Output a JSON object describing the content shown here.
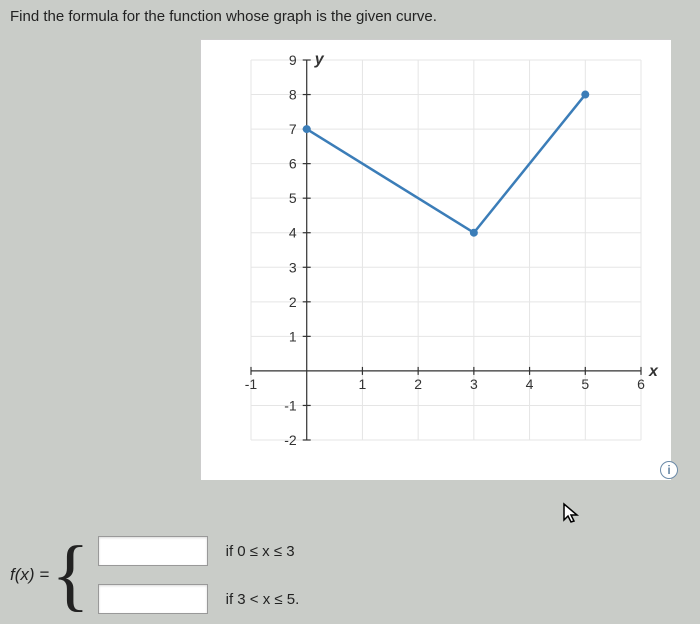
{
  "prompt": "Find the formula for the function whose graph is the given curve.",
  "formula_label": "f(x) =",
  "pieces": [
    {
      "value": "",
      "condition": "if 0 ≤ x ≤ 3"
    },
    {
      "value": "",
      "condition": "if 3 < x ≤ 5."
    }
  ],
  "info_icon_text": "i",
  "chart": {
    "type": "line",
    "x_axis_label": "x",
    "y_axis_label": "y",
    "xlim": [
      -1,
      6
    ],
    "ylim": [
      -2,
      9
    ],
    "xticks": [
      -1,
      1,
      2,
      3,
      4,
      5,
      6
    ],
    "yticks": [
      -2,
      -1,
      1,
      2,
      3,
      4,
      5,
      6,
      7,
      8,
      9
    ],
    "tick_fontsize": 14,
    "tick_color": "#333333",
    "axis_color": "#333333",
    "grid_color": "#e5e5e5",
    "grid_on": true,
    "background_color": "#ffffff",
    "segments": [
      {
        "points": [
          [
            0,
            7
          ],
          [
            3,
            4
          ]
        ],
        "color": "#3b7db8",
        "width": 2.5
      },
      {
        "points": [
          [
            3,
            4
          ],
          [
            5,
            8
          ]
        ],
        "color": "#3b7db8",
        "width": 2.5
      }
    ],
    "markers": [
      {
        "x": 0,
        "y": 7,
        "fill": "#3b7db8",
        "r": 4
      },
      {
        "x": 3,
        "y": 4,
        "fill": "#3b7db8",
        "r": 4
      },
      {
        "x": 5,
        "y": 8,
        "fill": "#3b7db8",
        "r": 4
      }
    ]
  }
}
